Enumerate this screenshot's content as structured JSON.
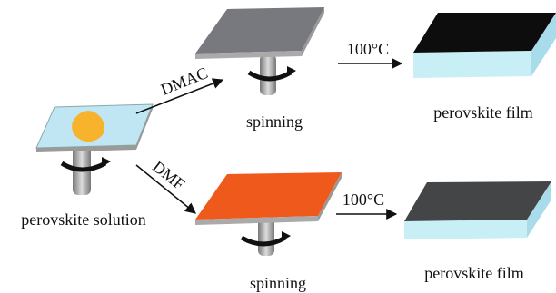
{
  "labels": {
    "dmac": "DMAC",
    "dmf": "DMF",
    "temp_top": "100°C",
    "temp_bottom": "100°C",
    "spinning_top": "spinning",
    "spinning_bottom": "spinning",
    "film_top": "perovskite film",
    "film_bottom": "perovskite film",
    "solution": "perovskite solution"
  }
}
